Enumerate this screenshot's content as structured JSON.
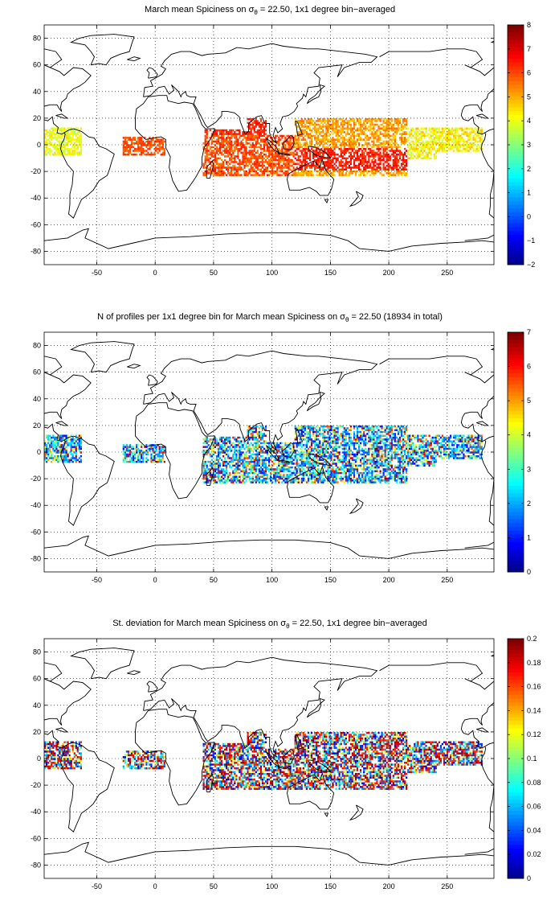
{
  "panels": [
    {
      "id": "mean",
      "title_pre": "March mean Spiciness on ",
      "title_sym": "σ",
      "title_sub": "θ",
      "title_post": " = 22.50, 1x1 degree bin−averaged",
      "colorbar": {
        "min": -2,
        "max": 8,
        "ticks": [
          "8",
          "7",
          "6",
          "5",
          "4",
          "3",
          "2",
          "1",
          "0",
          "−1",
          "−2"
        ]
      }
    },
    {
      "id": "count",
      "title_pre": "N of profiles per 1x1 degree bin for March mean Spiciness on ",
      "title_sym": "σ",
      "title_sub": "θ",
      "title_post": " = 22.50 (18934 in total)",
      "colorbar": {
        "min": 0,
        "max": 7,
        "ticks": [
          "7",
          "6",
          "5",
          "4",
          "3",
          "2",
          "1",
          "0"
        ]
      }
    },
    {
      "id": "std",
      "title_pre": "St. deviation for March mean Spiciness on ",
      "title_sym": "σ",
      "title_sub": "θ",
      "title_post": " = 22.50, 1x1 degree bin−averaged",
      "colorbar": {
        "min": 0,
        "max": 0.2,
        "ticks": [
          "0.2",
          "0.18",
          "0.16",
          "0.14",
          "0.12",
          "0.1",
          "0.08",
          "0.06",
          "0.04",
          "0.02",
          "0"
        ]
      }
    }
  ],
  "axes": {
    "x_ticks": [
      "-50",
      "0",
      "50",
      "100",
      "150",
      "200",
      "250"
    ],
    "x_values": [
      -50,
      0,
      50,
      100,
      150,
      200,
      250
    ],
    "y_ticks": [
      "80",
      "60",
      "40",
      "20",
      "0",
      "-20",
      "-40",
      "-60",
      "-80"
    ],
    "y_values": [
      80,
      60,
      40,
      20,
      0,
      -20,
      -40,
      -60,
      -80
    ],
    "xlim": [
      -95,
      290
    ],
    "ylim": [
      -90,
      90
    ],
    "grid": "dotted"
  },
  "colormap": "jet",
  "data_regions": [
    {
      "name": "eastern-pacific-west-atlantic",
      "lon": [
        -95,
        -62
      ],
      "lat": [
        -8,
        14
      ]
    },
    {
      "name": "atlantic-gulf-guinea",
      "lon": [
        -28,
        8
      ],
      "lat": [
        -7,
        6
      ]
    },
    {
      "name": "indian-ocean",
      "lon": [
        38,
        120
      ],
      "lat": [
        -22,
        20
      ]
    },
    {
      "name": "pacific",
      "lon": [
        120,
        280
      ],
      "lat": [
        -22,
        20
      ]
    }
  ]
}
